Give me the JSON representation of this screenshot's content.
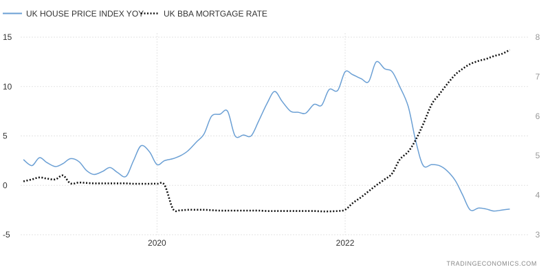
{
  "chart_data": {
    "type": "line",
    "title": "",
    "source": "TRADINGECONOMICS.COM",
    "legend_position": "top-left",
    "grid": true,
    "x_ticks": [
      2020,
      2022
    ],
    "x_range": [
      2018.55,
      2023.9
    ],
    "y_left": {
      "label": "",
      "ticks": [
        15,
        10,
        5,
        0,
        -5
      ],
      "range": [
        -5,
        15
      ]
    },
    "y_right": {
      "label": "",
      "ticks": [
        8,
        7,
        6,
        5,
        4,
        3
      ],
      "range": [
        3,
        8
      ]
    },
    "series": [
      {
        "name": "UK HOUSE PRICE INDEX YOY",
        "axis": "left",
        "color": "#6a9fd4",
        "style": "solid",
        "x": [
          2018.58,
          2018.67,
          2018.75,
          2018.83,
          2018.92,
          2019.0,
          2019.08,
          2019.17,
          2019.25,
          2019.33,
          2019.42,
          2019.5,
          2019.58,
          2019.67,
          2019.75,
          2019.83,
          2019.92,
          2020.0,
          2020.08,
          2020.17,
          2020.25,
          2020.33,
          2020.42,
          2020.5,
          2020.58,
          2020.67,
          2020.75,
          2020.83,
          2020.92,
          2021.0,
          2021.08,
          2021.17,
          2021.25,
          2021.33,
          2021.42,
          2021.5,
          2021.58,
          2021.67,
          2021.75,
          2021.83,
          2021.92,
          2022.0,
          2022.08,
          2022.17,
          2022.25,
          2022.33,
          2022.42,
          2022.5,
          2022.58,
          2022.67,
          2022.75,
          2022.83,
          2022.92,
          2023.0,
          2023.08,
          2023.17,
          2023.25,
          2023.33,
          2023.42,
          2023.5,
          2023.58,
          2023.67,
          2023.75
        ],
        "y": [
          2.6,
          2.0,
          2.8,
          2.3,
          1.9,
          2.2,
          2.7,
          2.4,
          1.5,
          1.1,
          1.4,
          1.8,
          1.3,
          0.9,
          2.5,
          4.0,
          3.4,
          2.1,
          2.5,
          2.7,
          3.0,
          3.5,
          4.4,
          5.2,
          7.0,
          7.2,
          7.5,
          5.0,
          5.1,
          5.0,
          6.5,
          8.3,
          9.5,
          8.5,
          7.5,
          7.4,
          7.3,
          8.2,
          8.1,
          9.7,
          9.6,
          11.5,
          11.2,
          10.8,
          10.5,
          12.5,
          11.8,
          11.5,
          10.0,
          8.0,
          4.5,
          2.0,
          2.1,
          2.0,
          1.5,
          0.5,
          -1.0,
          -2.5,
          -2.3,
          -2.4,
          -2.6,
          -2.5,
          -2.4
        ]
      },
      {
        "name": "UK BBA MORTGAGE RATE",
        "axis": "right",
        "color": "#111111",
        "style": "dotted",
        "x": [
          2018.58,
          2018.67,
          2018.75,
          2018.83,
          2018.92,
          2019.0,
          2019.08,
          2019.17,
          2019.25,
          2019.33,
          2019.42,
          2019.5,
          2019.58,
          2019.67,
          2019.75,
          2019.83,
          2019.92,
          2020.0,
          2020.08,
          2020.17,
          2020.25,
          2020.33,
          2020.42,
          2020.5,
          2020.58,
          2020.67,
          2020.75,
          2020.83,
          2020.92,
          2021.0,
          2021.08,
          2021.17,
          2021.25,
          2021.33,
          2021.42,
          2021.5,
          2021.58,
          2021.67,
          2021.75,
          2021.83,
          2021.92,
          2022.0,
          2022.08,
          2022.17,
          2022.25,
          2022.33,
          2022.42,
          2022.5,
          2022.58,
          2022.67,
          2022.75,
          2022.83,
          2022.92,
          2023.0,
          2023.08,
          2023.17,
          2023.25,
          2023.33,
          2023.42,
          2023.5,
          2023.58,
          2023.67,
          2023.75
        ],
        "y": [
          4.35,
          4.4,
          4.45,
          4.42,
          4.4,
          4.5,
          4.3,
          4.32,
          4.31,
          4.3,
          4.3,
          4.3,
          4.3,
          4.3,
          4.29,
          4.29,
          4.29,
          4.29,
          4.26,
          3.65,
          3.62,
          3.63,
          3.63,
          3.63,
          3.62,
          3.61,
          3.61,
          3.61,
          3.61,
          3.61,
          3.61,
          3.6,
          3.6,
          3.6,
          3.6,
          3.6,
          3.6,
          3.6,
          3.59,
          3.59,
          3.6,
          3.63,
          3.8,
          3.95,
          4.1,
          4.25,
          4.4,
          4.55,
          4.9,
          5.1,
          5.4,
          5.8,
          6.3,
          6.55,
          6.8,
          7.05,
          7.2,
          7.32,
          7.4,
          7.45,
          7.52,
          7.58,
          7.68
        ]
      }
    ]
  }
}
